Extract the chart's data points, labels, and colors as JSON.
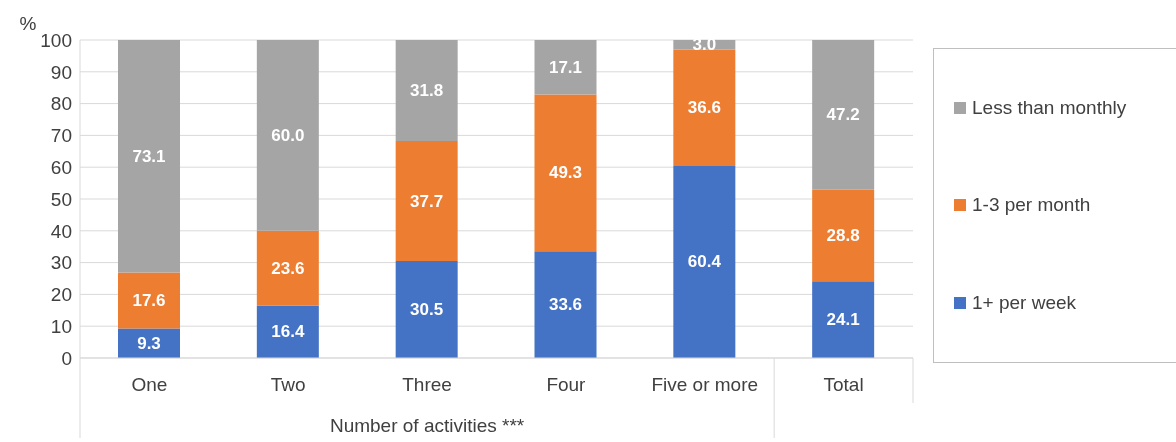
{
  "chart_data": {
    "type": "bar",
    "stacked": true,
    "ylabel": "%",
    "xlabel": "Number of activities ***",
    "categories": [
      "One",
      "Two",
      "Three",
      "Four",
      "Five or more",
      "Total"
    ],
    "series": [
      {
        "name": "1+ per week",
        "color": "#4472c4",
        "values": [
          9.3,
          16.4,
          30.5,
          33.6,
          60.4,
          24.1
        ],
        "value_labels": [
          "9.3",
          "16.4",
          "30.5",
          "33.6",
          "60.4",
          "24.1"
        ]
      },
      {
        "name": "1-3 per month",
        "color": "#ed7d31",
        "values": [
          17.6,
          23.6,
          37.7,
          49.3,
          36.6,
          28.8
        ],
        "value_labels": [
          "17.6",
          "23.6",
          "37.7",
          "49.3",
          "36.6",
          "28.8"
        ]
      },
      {
        "name": "Less than monthly",
        "color": "#a5a5a5",
        "values": [
          73.1,
          60.0,
          31.8,
          17.1,
          3.0,
          47.2
        ],
        "value_labels": [
          "73.1",
          "60.0",
          "31.8",
          "17.1",
          "3.0",
          "47.2"
        ]
      }
    ],
    "ylim": [
      0,
      100
    ],
    "yticks": [
      0,
      10,
      20,
      30,
      40,
      50,
      60,
      70,
      80,
      90,
      100
    ],
    "grid": "y",
    "legend": "right"
  }
}
